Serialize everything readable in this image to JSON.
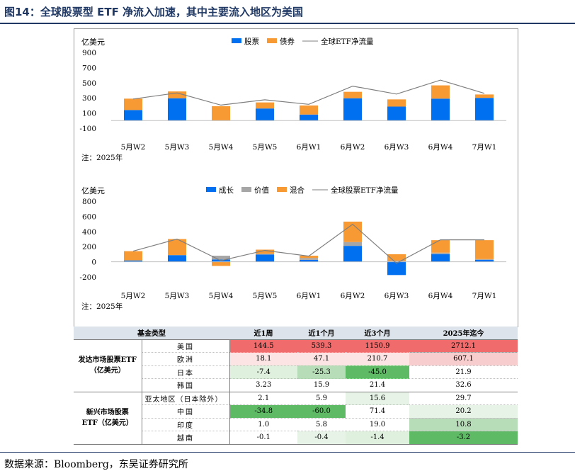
{
  "title": "图14：全球股票型 ETF 净流入加速，其中主要流入地区为美国",
  "source": "数据来源：Bloomberg，东吴证券研究所",
  "chart_data": [
    {
      "type": "bar",
      "stacked": true,
      "ylabel": "亿美元",
      "ylim": [
        -100,
        900
      ],
      "yticks": [
        -100,
        100,
        300,
        500,
        700,
        900
      ],
      "categories": [
        "5月W2",
        "5月W3",
        "5月W4",
        "5月W5",
        "6月W1",
        "6月W2",
        "6月W3",
        "6月W4",
        "7月W1"
      ],
      "series": [
        {
          "name": "股票",
          "color": "#0070f0",
          "values": [
            140,
            295,
            0,
            160,
            80,
            295,
            185,
            290,
            300
          ]
        },
        {
          "name": "债券",
          "color": "#f79a34",
          "values": [
            150,
            90,
            190,
            80,
            120,
            85,
            95,
            175,
            45
          ]
        }
      ],
      "line": {
        "name": "全球ETF净流量",
        "color": "#7f7f7f",
        "values": [
          285,
          365,
          205,
          275,
          215,
          455,
          350,
          535,
          360
        ]
      },
      "note": "注：2025年",
      "legend": "top-center"
    },
    {
      "type": "bar",
      "stacked": true,
      "ylabel": "亿美元",
      "ylim": [
        -200,
        800
      ],
      "yticks": [
        -200,
        0,
        200,
        400,
        600,
        800
      ],
      "categories": [
        "5月W2",
        "5月W3",
        "5月W4",
        "5月W5",
        "6月W1",
        "6月W2",
        "6月W3",
        "6月W4",
        "7月W1"
      ],
      "series": [
        {
          "name": "成长",
          "color": "#0070f0",
          "values": [
            15,
            85,
            30,
            95,
            25,
            210,
            -175,
            100,
            25
          ]
        },
        {
          "name": "价值",
          "color": "#a6a6a6",
          "values": [
            5,
            5,
            50,
            10,
            25,
            50,
            15,
            20,
            10
          ]
        },
        {
          "name": "混合",
          "color": "#f79a34",
          "values": [
            120,
            210,
            -55,
            55,
            30,
            270,
            85,
            165,
            250
          ]
        }
      ],
      "line": {
        "name": "全球股票ETF净流量",
        "color": "#7f7f7f",
        "values": [
          140,
          300,
          15,
          150,
          75,
          495,
          -20,
          290,
          290
        ]
      },
      "note": "注：2025年",
      "legend": "top-center"
    }
  ],
  "table": {
    "headers": [
      "基金类型",
      "近1周",
      "近1个月",
      "近3个月",
      "2025年迄今"
    ],
    "groups": [
      {
        "name_line1": "发达市场股票ETF",
        "name_line2": "（亿美元）",
        "rows": [
          {
            "country": "美国",
            "values": [
              "144.5",
              "539.3",
              "1150.9",
              "2712.1"
            ],
            "bg": [
              "#f06b6b",
              "#f06b6b",
              "#f06b6b",
              "#f06b6b"
            ]
          },
          {
            "country": "欧洲",
            "values": [
              "18.1",
              "47.1",
              "210.7",
              "607.1"
            ],
            "bg": [
              "#fce4e4",
              "#fce4e4",
              "#fce4e4",
              "#f8cdcd"
            ]
          },
          {
            "country": "日本",
            "values": [
              "-7.4",
              "-25.3",
              "-45.0",
              "21.9"
            ],
            "bg": [
              "#dff0df",
              "#b7ddb8",
              "#5fba66",
              "#ffffff"
            ]
          },
          {
            "country": "韩国",
            "values": [
              "3.23",
              "15.9",
              "21.4",
              "32.6"
            ],
            "bg": [
              "#ffffff",
              "#ffffff",
              "#ffffff",
              "#ffffff"
            ]
          }
        ]
      },
      {
        "name_line1": "新兴市场股票",
        "name_line2": "ETF（亿美元）",
        "rows": [
          {
            "country": "亚太地区（日本除外）",
            "values": [
              "2.1",
              "5.9",
              "15.6",
              "29.7"
            ],
            "bg": [
              "#ffffff",
              "#ffffff",
              "#e6f3e6",
              "#ffffff"
            ]
          },
          {
            "country": "中国",
            "values": [
              "-34.8",
              "-60.0",
              "71.4",
              "20.2"
            ],
            "bg": [
              "#5fba66",
              "#5fba66",
              "#ffffff",
              "#e6f3e6"
            ]
          },
          {
            "country": "印度",
            "values": [
              "1.0",
              "5.8",
              "19.0",
              "10.8"
            ],
            "bg": [
              "#ffffff",
              "#ffffff",
              "#ffffff",
              "#b7ddb8"
            ]
          },
          {
            "country": "越南",
            "values": [
              "-0.1",
              "-0.4",
              "-1.4",
              "-3.2"
            ],
            "bg": [
              "#ffffff",
              "#e6f3e6",
              "#dff0df",
              "#5fba66"
            ]
          }
        ]
      }
    ]
  }
}
